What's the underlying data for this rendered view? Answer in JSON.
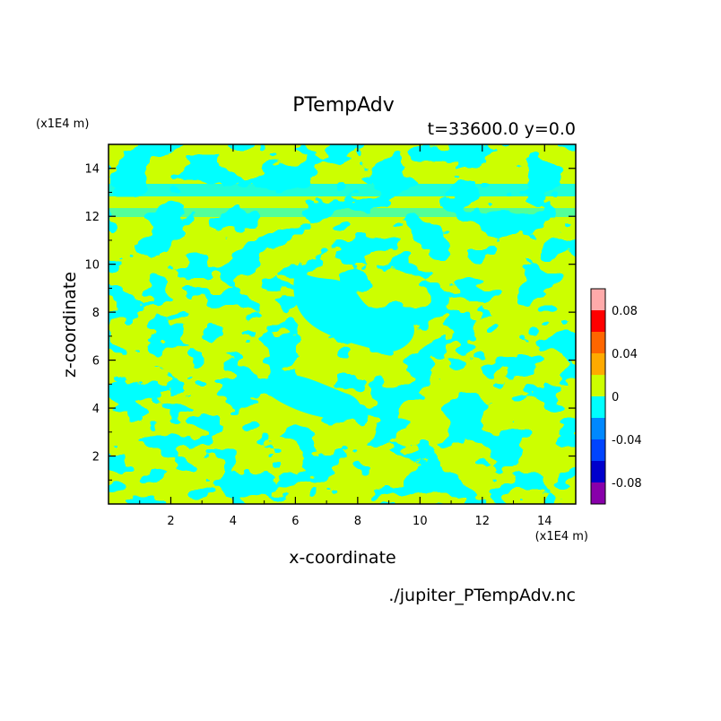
{
  "chart_data": {
    "type": "heatmap",
    "title": "PTempAdv",
    "subtitle": "t=33600.0 y=0.0",
    "xlabel": "x-coordinate",
    "ylabel": "z-coordinate",
    "x_unit": "(x1E4 m)",
    "y_unit": "(x1E4 m)",
    "xlim": [
      0,
      15
    ],
    "ylim": [
      0,
      15
    ],
    "x_ticks": [
      "2",
      "4",
      "6",
      "8",
      "10",
      "12",
      "14"
    ],
    "x_tick_values": [
      2,
      4,
      6,
      8,
      10,
      12,
      14
    ],
    "y_ticks": [
      "2",
      "4",
      "6",
      "8",
      "10",
      "12",
      "14"
    ],
    "y_tick_values": [
      2,
      4,
      6,
      8,
      10,
      12,
      14
    ],
    "field_colors": {
      "positive_0_to_0.02": "#ccff00",
      "negative_-0.02_to_0": "#00ffff"
    },
    "colorbar": {
      "levels": [
        -0.1,
        -0.08,
        -0.06,
        -0.04,
        -0.02,
        0,
        0.02,
        0.04,
        0.06,
        0.08,
        0.1
      ],
      "colors": [
        "#8800aa",
        "#0000cc",
        "#0044ff",
        "#0088ff",
        "#00ffff",
        "#ccff00",
        "#ffaa00",
        "#ff6600",
        "#ff0000",
        "#ffaaaa"
      ],
      "tick_labels": [
        "0.08",
        "0.04",
        "0",
        "-0.04",
        "-0.08"
      ],
      "tick_values": [
        0.08,
        0.04,
        0,
        -0.04,
        -0.08
      ]
    },
    "source_file": "./jupiter_PTempAdv.nc",
    "grid": false
  }
}
